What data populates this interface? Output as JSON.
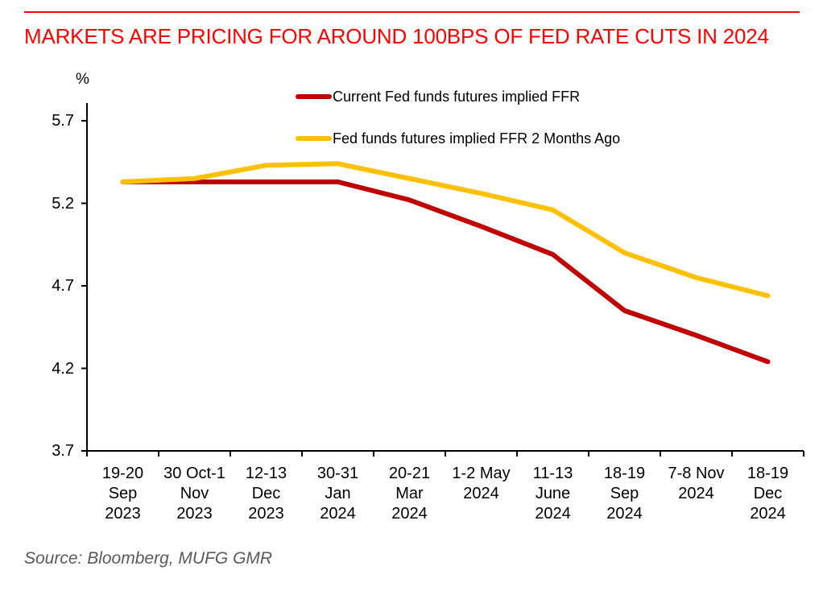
{
  "title": "MARKETS ARE PRICING FOR AROUND 100BPS OF FED RATE CUTS IN 2024",
  "source_note": "Source: Bloomberg, MUFG GMR",
  "colors": {
    "title_red": "#FF0000",
    "rule_red": "#FF0000",
    "axis_black": "#000000",
    "source_gray": "#595959",
    "series_red": "#C00000",
    "series_gold": "#FFC000"
  },
  "chart_data": {
    "type": "line",
    "title": "MARKETS ARE PRICING FOR AROUND 100BPS OF FED RATE CUTS IN 2024",
    "xlabel": "",
    "ylabel": "%",
    "ylim": [
      3.7,
      5.8
    ],
    "y_ticks": [
      "5.7",
      "5.2",
      "4.7",
      "4.2",
      "3.7"
    ],
    "y_tick_values": [
      5.7,
      5.2,
      4.7,
      4.2,
      3.7
    ],
    "grid": false,
    "legend_position": "top-center",
    "categories": [
      "19-20 Sep 2023",
      "30 Oct-1 Nov 2023",
      "12-13 Dec 2023",
      "30-31 Jan 2024",
      "20-21 Mar 2024",
      "1-2 May 2024",
      "11-13 June 2024",
      "18-19 Sep 2024",
      "7-8 Nov 2024",
      "18-19 Dec 2024"
    ],
    "x_tick_label_lines": [
      [
        "19-20",
        "Sep",
        "2023"
      ],
      [
        "30 Oct-1",
        "Nov",
        "2023"
      ],
      [
        "12-13",
        "Dec",
        "2023"
      ],
      [
        "30-31",
        "Jan",
        "2024"
      ],
      [
        "20-21",
        "Mar",
        "2024"
      ],
      [
        "1-2 May",
        "2024"
      ],
      [
        "11-13",
        "June",
        "2024"
      ],
      [
        "18-19",
        "Sep",
        "2024"
      ],
      [
        "7-8 Nov",
        "2024"
      ],
      [
        "18-19",
        "Dec",
        "2024"
      ]
    ],
    "series": [
      {
        "name": "Current Fed funds futures implied FFR",
        "color": "#C00000",
        "values": [
          5.33,
          5.33,
          5.33,
          5.33,
          5.22,
          5.06,
          4.89,
          4.55,
          4.4,
          4.24
        ]
      },
      {
        "name": "Fed funds futures implied FFR 2 Months Ago",
        "color": "#FFC000",
        "values": [
          5.33,
          5.35,
          5.43,
          5.44,
          5.35,
          5.26,
          5.16,
          4.9,
          4.75,
          4.64
        ]
      }
    ]
  }
}
